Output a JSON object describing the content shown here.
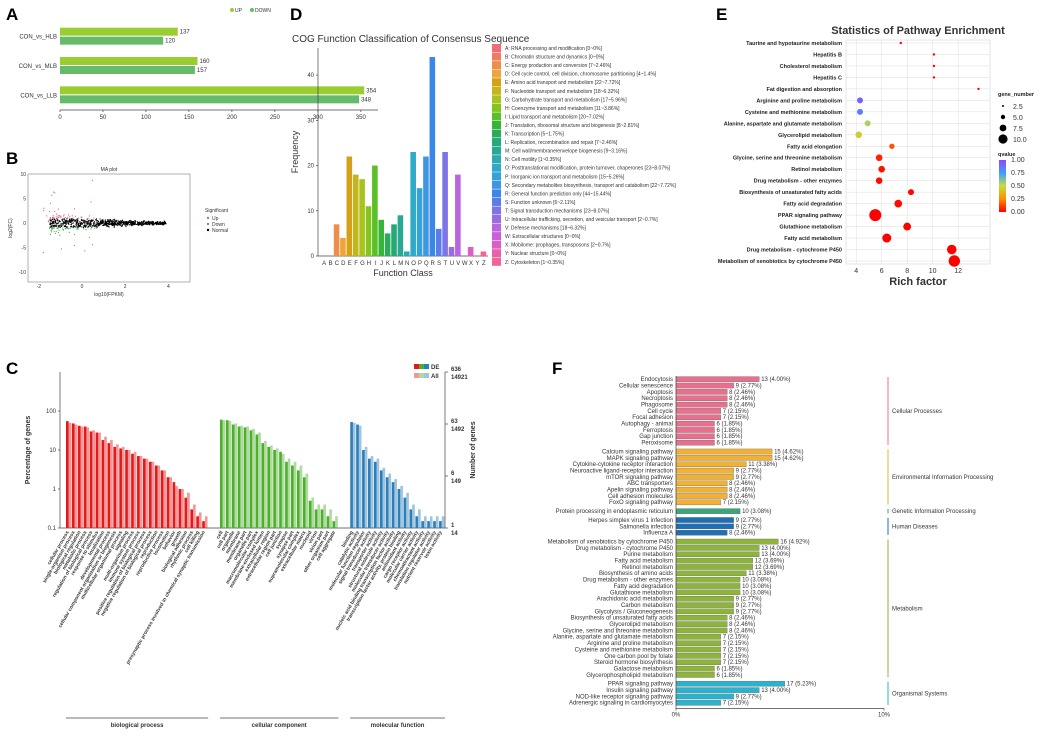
{
  "panel_labels": {
    "a": "A",
    "b": "B",
    "c": "C",
    "d": "D",
    "e": "E",
    "f": "F"
  },
  "chart_data": [
    {
      "id": "A",
      "type": "bar",
      "orientation": "horizontal",
      "categories": [
        "CON_vs_HLB",
        "CON_vs_MLB",
        "CON_vs_LLB"
      ],
      "series": [
        {
          "name": "UP",
          "color": "#9ACD32",
          "values": [
            137,
            160,
            354
          ]
        },
        {
          "name": "DOWN",
          "color": "#66BB6A",
          "values": [
            120,
            157,
            348
          ]
        }
      ],
      "xticks": [
        "0",
        "50",
        "100",
        "150",
        "200",
        "250",
        "300",
        "350"
      ],
      "xlim": [
        0,
        370
      ],
      "legend": [
        "UP",
        "DOWN"
      ]
    },
    {
      "id": "B",
      "type": "scatter",
      "title": "MA plot",
      "xlabel": "log10(FPKM)",
      "ylabel": "log2(FC)",
      "xticks": [
        "-2",
        "0",
        "2",
        "4"
      ],
      "yticks": [
        "10",
        "5",
        "0",
        "-5",
        "-10"
      ],
      "xlim": [
        -2.5,
        5
      ],
      "ylim": [
        -12,
        10
      ],
      "legend_title": "Significant",
      "legend": [
        {
          "name": "Up",
          "color": "#e8607a"
        },
        {
          "name": "Down",
          "color": "#4caf50"
        },
        {
          "name": "Normal",
          "color": "#000000"
        }
      ]
    },
    {
      "id": "C",
      "type": "bar",
      "ylabel": "Percentage of genes",
      "y2label": "Number of genes",
      "yticks": [
        "100",
        "10",
        "1",
        "0.1"
      ],
      "y2_de": [
        "636",
        "63",
        "6",
        "1"
      ],
      "y2_all": [
        "14921",
        "1492",
        "149",
        "14"
      ],
      "legend": [
        "DE",
        "All"
      ],
      "groups": [
        "biological process",
        "cellular component",
        "molecular function"
      ],
      "group_colors": [
        "#e31a1c",
        "#4daf2c",
        "#2c7fb8"
      ],
      "terms": [
        [
          "cellular process",
          "single-organism process",
          "biological regulation",
          "metabolic process",
          "regulation of biological process",
          "response to stimulus",
          "localization",
          "developmental process",
          "cellular component organization or biogenesis",
          "multicellular organismal process",
          "signaling",
          "multi-organism process",
          "immune system process",
          "positive regulation of biological process",
          "negative regulation of biological process",
          "reproduction",
          "reproductive process",
          "locomotion",
          "behavior",
          "growth",
          "biological adhesion",
          "rhythmic process",
          "cell killing",
          "presynaptic process involved in chemical synaptic transmission"
        ],
        [
          "cell",
          "cell part",
          "organelle",
          "membrane",
          "membrane part",
          "organelle part",
          "macromolecular complex",
          "membrane-enclosed lumen",
          "extracellular region",
          "extracellular region part",
          "cell junction",
          "synapse",
          "synapse part",
          "supramolecular complex",
          "extracellular matrix",
          "nucleoid",
          "virion",
          "virion part",
          "other organism part",
          "cell aggregate"
        ],
        [
          "binding",
          "catalytic activity",
          "molecular function regulator",
          "signal transducer activity",
          "transporter activity",
          "structural molecule activity",
          "molecular transducer activity",
          "nucleic acid binding transcription factor activity",
          "transcription factor activity, protein binding",
          "antioxidant activity",
          "cargo receptor activity",
          "molecular carrier activity",
          "chemoattractant activity",
          "translation regulator activity",
          "nutrient reservoir activity",
          "toxin activity"
        ]
      ],
      "de_pct": [
        [
          55,
          48,
          42,
          40,
          30,
          28,
          18,
          15,
          12,
          11,
          10,
          8,
          7,
          6,
          5,
          4,
          3,
          2,
          1.5,
          1,
          0.6,
          0.3,
          0.2,
          0.15
        ],
        [
          60,
          58,
          45,
          40,
          38,
          32,
          25,
          15,
          12,
          10,
          9,
          5,
          4,
          3,
          2,
          0.5,
          0.3,
          0.3,
          0.2,
          0.15
        ],
        [
          52,
          45,
          10,
          6,
          5,
          3,
          2,
          1.5,
          1,
          0.6,
          0.3,
          0.2,
          0.15,
          0.15,
          0.15,
          0.15
        ]
      ],
      "all_pct": [
        [
          50,
          45,
          40,
          38,
          32,
          28,
          22,
          18,
          14,
          12,
          10,
          9,
          7,
          6,
          5,
          4,
          3,
          2,
          1.2,
          1.0,
          0.8,
          0.4,
          0.25,
          0.2
        ],
        [
          58,
          56,
          48,
          42,
          40,
          35,
          28,
          17,
          13,
          11,
          8,
          6,
          5,
          4,
          2.5,
          0.6,
          0.4,
          0.4,
          0.3,
          0.2
        ],
        [
          50,
          42,
          12,
          7,
          6,
          3.5,
          2.5,
          1.8,
          1.2,
          0.8,
          0.4,
          0.3,
          0.2,
          0.2,
          0.2,
          0.2
        ]
      ]
    },
    {
      "id": "D",
      "type": "bar",
      "title": "COG Function Classification of Consensus Sequence",
      "xlabel": "Function Class",
      "ylabel": "Frequency",
      "categories": [
        "A",
        "B",
        "C",
        "D",
        "E",
        "F",
        "G",
        "H",
        "I",
        "J",
        "K",
        "L",
        "M",
        "N",
        "O",
        "P",
        "Q",
        "R",
        "S",
        "T",
        "U",
        "V",
        "W",
        "X",
        "Y",
        "Z"
      ],
      "values": [
        0,
        0,
        7,
        4,
        22,
        18,
        17,
        11,
        20,
        8,
        5,
        7,
        9,
        1,
        23,
        15,
        22,
        44,
        6,
        23,
        2,
        18,
        0,
        2,
        0,
        1
      ],
      "ylim": [
        0,
        46
      ],
      "yticks": [
        "0",
        "10",
        "20",
        "30",
        "40"
      ],
      "legend": [
        "A: RNA processing and modification [0~0%]",
        "B: Chromatin structure and dynamics [0~0%]",
        "C: Energy production and conversion [7~2.46%]",
        "D: Cell cycle control, cell division, chromosome partitioning [4~1.4%]",
        "E: Amino acid transport and metabolism [22~7.72%]",
        "F: Nucleotide transport and metabolism [18~6.32%]",
        "G: Carbohydrate transport and metabolism [17~5.96%]",
        "H: Coenzyme transport and metabolism [11~3.86%]",
        "I: Lipid transport and metabolism [20~7.02%]",
        "J: Translation, ribosomal structure and biogenesis [8~2.81%]",
        "K: Transcription [5~1.75%]",
        "L: Replication, recombination and repair [7~2.46%]",
        "M: Cell wall/membrane/envelope biogenesis [9~3.16%]",
        "N: Cell motility [1~0.35%]",
        "O: Posttranslational modification, protein turnover, chaperones [23~8.07%]",
        "P: Inorganic ion transport and metabolism [15~5.26%]",
        "Q: Secondary metabolites biosynthesis, transport and catabolism [22~7.72%]",
        "R: General function prediction only [44~15.44%]",
        "S: Function unknown [6~2.11%]",
        "T: Signal transduction mechanisms [23~8.07%]",
        "U: Intracellular trafficking, secretion, and vesicular transport [2~0.7%]",
        "V: Defense mechanisms [18~6.32%]",
        "W: Extracellular structures [0~0%]",
        "X: Mobilome: prophages, transposons [2~0.7%]",
        "Y: Nuclear structure [0~0%]",
        "Z: Cytoskeleton [1~0.35%]"
      ],
      "colors": [
        "#f26b7a",
        "#f07d62",
        "#ee8e4b",
        "#eda43a",
        "#d4a017",
        "#c3b51a",
        "#a8c21e",
        "#83c51f",
        "#5bbf26",
        "#37b53a",
        "#2cac58",
        "#27a877",
        "#2ba893",
        "#2aabb0",
        "#2eaac8",
        "#34a2d9",
        "#3f96e2",
        "#3b87e8",
        "#5b7de9",
        "#7d74e6",
        "#9a6ce3",
        "#b865df",
        "#cc5fd6",
        "#dc5fc6",
        "#e961ad",
        "#f16694"
      ]
    },
    {
      "id": "E",
      "type": "scatter",
      "title": "Statistics of Pathway Enrichment",
      "xlabel": "Rich factor",
      "xlim": [
        3.2,
        14.5
      ],
      "xticks": [
        "4",
        "6",
        "8",
        "10",
        "12"
      ],
      "size_legend_title": "gene_number",
      "size_legend": [
        "2.5",
        "5.0",
        "7.5",
        "10.0"
      ],
      "color_legend_title": "qvalue",
      "color_legend": [
        "1.00",
        "0.75",
        "0.50",
        "0.25",
        "0.00"
      ],
      "pathways": [
        "Taurine and hypotaurine metabolism",
        "Hepatitis B",
        "Cholesterol metabolism",
        "Hepatitis C",
        "Fat digestion and absorption",
        "Arginine and proline metabolism",
        "Cysteine and methionine metabolism",
        "Alanine, aspartate and glutamate metabolism",
        "Glycerolipid metabolism",
        "Fatty acid elongation",
        "Glycine, serine and threonine metabolism",
        "Retinol metabolism",
        "Drug metabolism - other enzymes",
        "Biosynthesis of unsaturated fatty acids",
        "Fatty acid degradation",
        "PPAR signaling pathway",
        "Glutathione metabolism",
        "Fatty acid metabolism",
        "Drug metabolism - cytochrome P450",
        "Metabolism of xenobiotics by cytochrome P450"
      ],
      "rich_factor": [
        7.5,
        10.1,
        10.1,
        10.1,
        13.6,
        4.3,
        4.3,
        4.9,
        4.2,
        6.8,
        5.8,
        6.0,
        5.8,
        8.3,
        7.3,
        5.5,
        8.0,
        6.4,
        11.5,
        11.7
      ],
      "gene_number": [
        1,
        1,
        1,
        1,
        1,
        7,
        7,
        7,
        8,
        6,
        8,
        8,
        8,
        7,
        10,
        17,
        10,
        12,
        13,
        16
      ],
      "qvalue": [
        0.0,
        0.0,
        0.0,
        0.0,
        0.0,
        0.92,
        0.85,
        0.55,
        0.45,
        0.15,
        0.06,
        0.03,
        0.02,
        0.01,
        0.02,
        0.0,
        0.0,
        0.0,
        0.0,
        0.0
      ]
    },
    {
      "id": "F",
      "type": "bar",
      "orientation": "horizontal",
      "xticks": [
        "0%",
        "10%"
      ],
      "xlim": [
        0,
        10
      ],
      "groups": [
        {
          "name": "Cellular Processes",
          "color": "#e8708c",
          "items": [
            [
              "Endocytosis",
              13,
              "13 (4.00%)"
            ],
            [
              "Cellular senescence",
              9,
              "9 (2.77%)"
            ],
            [
              "Apoptosis",
              8,
              "8 (2.46%)"
            ],
            [
              "Necroptosis",
              8,
              "8 (2.46%)"
            ],
            [
              "Phagosome",
              8,
              "8 (2.46%)"
            ],
            [
              "Cell cycle",
              7,
              "7 (2.15%)"
            ],
            [
              "Focal adhesion",
              7,
              "7 (2.15%)"
            ],
            [
              "Autophagy - animal",
              6,
              "6 (1.85%)"
            ],
            [
              "Ferroptosis",
              6,
              "6 (1.85%)"
            ],
            [
              "Gap junction",
              6,
              "6 (1.85%)"
            ],
            [
              "Peroxisome",
              6,
              "6 (1.85%)"
            ]
          ]
        },
        {
          "name": "Environmental Information Processing",
          "color": "#f2b133",
          "items": [
            [
              "Calcium signaling pathway",
              15,
              "15 (4.62%)"
            ],
            [
              "MAPK signaling pathway",
              15,
              "15 (4.62%)"
            ],
            [
              "Cytokine-cytokine receptor interaction",
              11,
              "11 (3.38%)"
            ],
            [
              "Neuroactive ligand-receptor interaction",
              9,
              "9 (2.77%)"
            ],
            [
              "mTOR signaling pathway",
              9,
              "9 (2.77%)"
            ],
            [
              "ABC transporters",
              8,
              "8 (2.46%)"
            ],
            [
              "Apelin signaling pathway",
              8,
              "8 (2.46%)"
            ],
            [
              "Cell adhesion molecules",
              8,
              "8 (2.46%)"
            ],
            [
              "FoxO signaling pathway",
              7,
              "7 (2.15%)"
            ]
          ]
        },
        {
          "name": "Genetic Information Processing",
          "color": "#3aa67a",
          "items": [
            [
              "Protein processing in endoplasmic reticulum",
              10,
              "10 (3.08%)"
            ]
          ]
        },
        {
          "name": "Human Diseases",
          "color": "#1f6fb4",
          "items": [
            [
              "Herpes simplex virus 1 infection",
              9,
              "9 (2.77%)"
            ],
            [
              "Salmonella infection",
              9,
              "9 (2.77%)"
            ],
            [
              "Influenza A",
              8,
              "8 (2.46%)"
            ]
          ]
        },
        {
          "name": "Metabolism",
          "color": "#8fb43c",
          "items": [
            [
              "Metabolism of xenobiotics by cytochrome P450",
              16,
              "16 (4.92%)"
            ],
            [
              "Drug metabolism - cytochrome P450",
              13,
              "13 (4.00%)"
            ],
            [
              "Purine metabolism",
              13,
              "13 (4.00%)"
            ],
            [
              "Fatty acid metabolism",
              12,
              "12 (3.69%)"
            ],
            [
              "Retinol metabolism",
              12,
              "12 (3.69%)"
            ],
            [
              "Biosynthesis of amino acids",
              11,
              "11 (3.38%)"
            ],
            [
              "Drug metabolism - other enzymes",
              10,
              "10 (3.08%)"
            ],
            [
              "Fatty acid degradation",
              10,
              "10 (3.08%)"
            ],
            [
              "Glutathione metabolism",
              10,
              "10 (3.08%)"
            ],
            [
              "Arachidonic acid metabolism",
              9,
              "9 (2.77%)"
            ],
            [
              "Carbon metabolism",
              9,
              "9 (2.77%)"
            ],
            [
              "Glycolysis / Gluconeogenesis",
              9,
              "9 (2.77%)"
            ],
            [
              "Biosynthesis of unsaturated fatty acids",
              8,
              "8 (2.46%)"
            ],
            [
              "Glycerolipid metabolism",
              8,
              "8 (2.46%)"
            ],
            [
              "Glycine, serine and threonine metabolism",
              8,
              "8 (2.46%)"
            ],
            [
              "Alanine, aspartate and glutamate metabolism",
              7,
              "7 (2.15%)"
            ],
            [
              "Arginine and proline metabolism",
              7,
              "7 (2.15%)"
            ],
            [
              "Cysteine and methionine metabolism",
              7,
              "7 (2.15%)"
            ],
            [
              "One carbon pool by folate",
              7,
              "7 (2.15%)"
            ],
            [
              "Steroid hormone biosynthesis",
              7,
              "7 (2.15%)"
            ],
            [
              "Galactose metabolism",
              6,
              "6 (1.85%)"
            ],
            [
              "Glycerophospholipid metabolism",
              6,
              "6 (1.85%)"
            ]
          ]
        },
        {
          "name": "Organismal Systems",
          "color": "#2ab3cf",
          "items": [
            [
              "PPAR signaling pathway",
              17,
              "17 (5.23%)"
            ],
            [
              "Insulin signaling pathway",
              13,
              "13 (4.00%)"
            ],
            [
              "NOD-like receptor signaling pathway",
              9,
              "9 (2.77%)"
            ],
            [
              "Adrenergic signaling in cardiomyocytes",
              7,
              "7 (2.15%)"
            ]
          ]
        }
      ]
    }
  ]
}
